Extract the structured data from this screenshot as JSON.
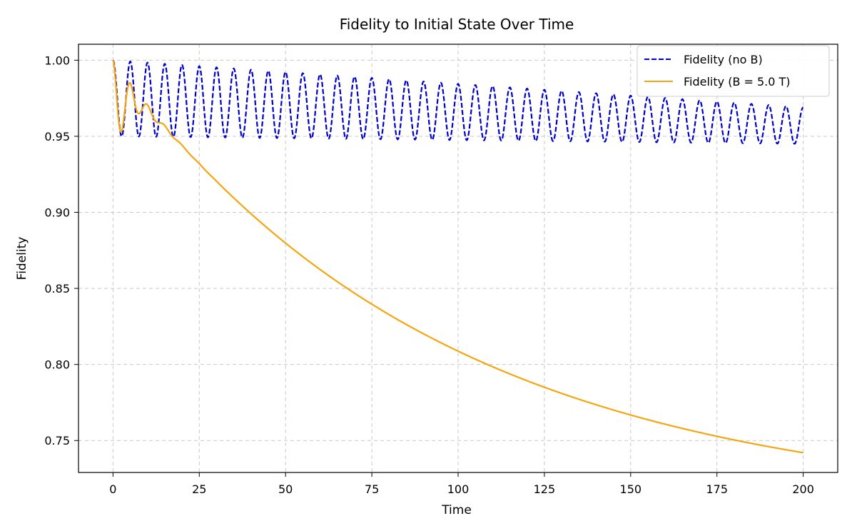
{
  "chart_data": {
    "type": "line",
    "title": "Fidelity to Initial State Over Time",
    "xlabel": "Time",
    "ylabel": "Fidelity",
    "xlim": [
      -10,
      210
    ],
    "ylim": [
      0.729,
      1.0105
    ],
    "xticks": [
      0,
      25,
      50,
      75,
      100,
      125,
      150,
      175,
      200
    ],
    "yticks": [
      0.75,
      0.8,
      0.85,
      0.9,
      0.95,
      1.0
    ],
    "ytick_labels": [
      "0.75",
      "0.80",
      "0.85",
      "0.90",
      "0.95",
      "1.00"
    ],
    "grid": true,
    "legend_position": "top-right",
    "series": [
      {
        "name": "Fidelity (no B)",
        "color": "#0000cc",
        "style": "dashed",
        "model": {
          "kind": "oscillation",
          "low": 0.95,
          "start": 1.0,
          "peak_end": 0.969,
          "min_end": 0.945,
          "period": 5.0,
          "x_start": 0,
          "x_end": 200
        },
        "samples": [
          {
            "x": 0,
            "y": 1.0
          },
          {
            "x": 2.5,
            "y": 0.95
          },
          {
            "x": 5,
            "y": 0.999
          },
          {
            "x": 50,
            "y": 0.992
          },
          {
            "x": 100,
            "y": 0.983
          },
          {
            "x": 150,
            "y": 0.976
          },
          {
            "x": 200,
            "y": 0.957
          }
        ]
      },
      {
        "name": "Fidelity (B = 5.0 T)",
        "color": "#f5a50f",
        "style": "solid",
        "model": {
          "kind": "damped-decay",
          "base_start": 1.0,
          "base_end": 0.742,
          "tau": 95,
          "osc_amp": 0.034,
          "osc_damping": 4.5,
          "period": 5.0
        },
        "samples": [
          {
            "x": 0,
            "y": 1.0
          },
          {
            "x": 2.5,
            "y": 0.949
          },
          {
            "x": 5,
            "y": 0.978
          },
          {
            "x": 10,
            "y": 0.96
          },
          {
            "x": 25,
            "y": 0.92
          },
          {
            "x": 50,
            "y": 0.873
          },
          {
            "x": 75,
            "y": 0.836
          },
          {
            "x": 100,
            "y": 0.807
          },
          {
            "x": 125,
            "y": 0.784
          },
          {
            "x": 150,
            "y": 0.766
          },
          {
            "x": 175,
            "y": 0.753
          },
          {
            "x": 200,
            "y": 0.742
          }
        ]
      }
    ]
  }
}
